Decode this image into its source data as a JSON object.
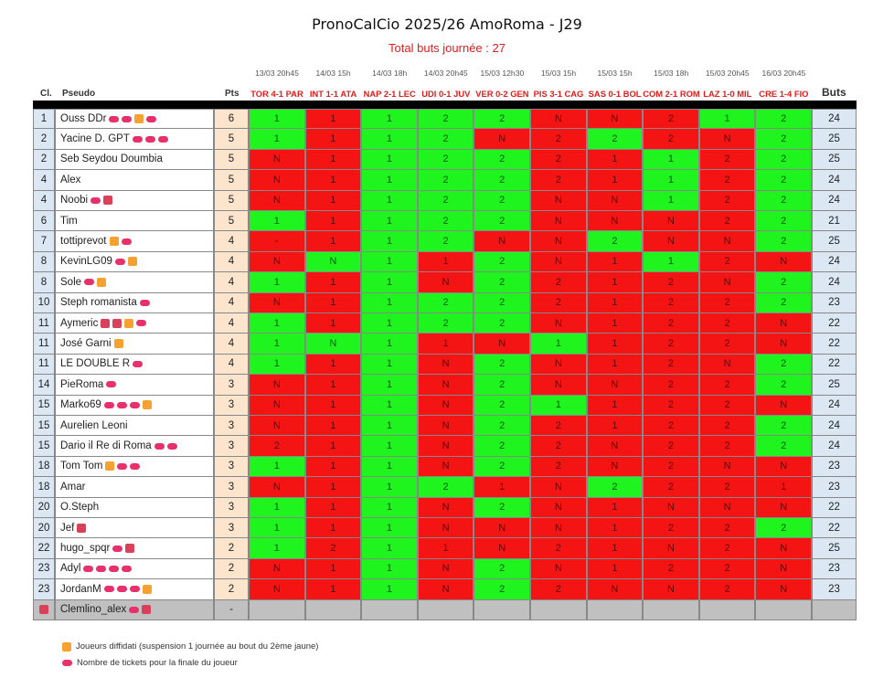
{
  "title": "PronoCalCio 2025/26 AmoRoma - J29",
  "subtitle": "Total buts journée : 27",
  "headers": {
    "rank": "Cl.",
    "name": "Pseudo",
    "pts": "Pts",
    "buts": "Buts"
  },
  "matches": [
    {
      "date": "13/03 20h45",
      "label": "TOR 4-1 PAR"
    },
    {
      "date": "14/03 15h",
      "label": "INT 1-1 ATA"
    },
    {
      "date": "14/03 18h",
      "label": "NAP 2-1 LEC"
    },
    {
      "date": "14/03 20h45",
      "label": "UDI 0-1 JUV"
    },
    {
      "date": "15/03 12h30",
      "label": "VER 0-2 GEN"
    },
    {
      "date": "15/03 15h",
      "label": "PIS 3-1 CAG"
    },
    {
      "date": "15/03 15h",
      "label": "SAS 0-1 BOL"
    },
    {
      "date": "15/03 18h",
      "label": "COM 2-1 ROM"
    },
    {
      "date": "15/03 20h45",
      "label": "LAZ 1-0 MIL"
    },
    {
      "date": "16/03 20h45",
      "label": "CRE 1-4 FIO"
    }
  ],
  "colors": {
    "correct": "#1ff41f",
    "wrong": "#f41414",
    "empty": "#c0c0c0",
    "rank_bg": "#dbe7f3",
    "pts_bg": "#fde4cc"
  },
  "players": [
    {
      "rank": "1",
      "name": "Ouss DDr",
      "badges": [
        "ticket",
        "ticket",
        "suspend",
        "ticket"
      ],
      "pts": "6",
      "picks": [
        "1",
        "1",
        "1",
        "2",
        "2",
        "N",
        "N",
        "2",
        "1",
        "2"
      ],
      "res": "GRGGGRRRGG",
      "buts": "24"
    },
    {
      "rank": "2",
      "name": "Yacine D. GPT",
      "badges": [
        "ticket",
        "ticket",
        "ticket"
      ],
      "pts": "5",
      "picks": [
        "1",
        "1",
        "1",
        "2",
        "N",
        "2",
        "2",
        "2",
        "N",
        "2"
      ],
      "res": "GRGGRRGRRG",
      "buts": "25"
    },
    {
      "rank": "2",
      "name": "Seb Seydou Doumbia",
      "badges": [],
      "pts": "5",
      "picks": [
        "N",
        "1",
        "1",
        "2",
        "2",
        "2",
        "1",
        "1",
        "2",
        "2"
      ],
      "res": "RRGGGRRGRG",
      "buts": "25"
    },
    {
      "rank": "4",
      "name": "Alex",
      "badges": [],
      "pts": "5",
      "picks": [
        "N",
        "1",
        "1",
        "2",
        "2",
        "2",
        "1",
        "1",
        "2",
        "2"
      ],
      "res": "RRGGGRRGRG",
      "buts": "24"
    },
    {
      "rank": "4",
      "name": "Noobi",
      "badges": [
        "ticket",
        "sq"
      ],
      "pts": "5",
      "picks": [
        "N",
        "1",
        "1",
        "2",
        "2",
        "N",
        "N",
        "1",
        "2",
        "2"
      ],
      "res": "RRGGGRRGRG",
      "buts": "24"
    },
    {
      "rank": "6",
      "name": "Tim",
      "badges": [],
      "pts": "5",
      "picks": [
        "1",
        "1",
        "1",
        "2",
        "2",
        "N",
        "N",
        "N",
        "2",
        "2"
      ],
      "res": "GRGGGRRRRG",
      "buts": "21"
    },
    {
      "rank": "7",
      "name": "tottiprevot",
      "badges": [
        "suspend",
        "ticket"
      ],
      "pts": "4",
      "picks": [
        "-",
        "1",
        "1",
        "2",
        "N",
        "N",
        "2",
        "N",
        "N",
        "2"
      ],
      "res": "DRGGRRGRRG",
      "buts": "25"
    },
    {
      "rank": "8",
      "name": "KevinLG09",
      "badges": [
        "ticket",
        "suspend"
      ],
      "pts": "4",
      "picks": [
        "N",
        "N",
        "1",
        "1",
        "2",
        "N",
        "1",
        "1",
        "2",
        "N"
      ],
      "res": "RGGRGRRGRR",
      "buts": "24"
    },
    {
      "rank": "8",
      "name": "Sole",
      "badges": [
        "ticket",
        "suspend"
      ],
      "pts": "4",
      "picks": [
        "1",
        "1",
        "1",
        "N",
        "2",
        "2",
        "1",
        "2",
        "N",
        "2"
      ],
      "res": "GRGRGRRRRG",
      "buts": "24"
    },
    {
      "rank": "10",
      "name": "Steph romanista",
      "badges": [
        "ticket"
      ],
      "pts": "4",
      "picks": [
        "N",
        "1",
        "1",
        "2",
        "2",
        "2",
        "1",
        "2",
        "2",
        "2"
      ],
      "res": "RRGGGRRRRG",
      "buts": "23"
    },
    {
      "rank": "11",
      "name": "Aymeric",
      "badges": [
        "sq",
        "sq",
        "suspend",
        "ticket"
      ],
      "pts": "4",
      "picks": [
        "1",
        "1",
        "1",
        "2",
        "2",
        "N",
        "1",
        "2",
        "2",
        "N"
      ],
      "res": "GRGGGRRRRR",
      "buts": "22"
    },
    {
      "rank": "11",
      "name": "José Garni",
      "badges": [
        "suspend"
      ],
      "pts": "4",
      "picks": [
        "1",
        "N",
        "1",
        "1",
        "N",
        "1",
        "1",
        "2",
        "2",
        "N"
      ],
      "res": "GGGRRGRRRR",
      "buts": "22"
    },
    {
      "rank": "11",
      "name": "LE DOUBLE R",
      "badges": [
        "ticket"
      ],
      "pts": "4",
      "picks": [
        "1",
        "1",
        "1",
        "N",
        "2",
        "N",
        "1",
        "2",
        "N",
        "2"
      ],
      "res": "GRGRGRRRRG",
      "buts": "22"
    },
    {
      "rank": "14",
      "name": "PieRoma",
      "badges": [
        "ticket"
      ],
      "pts": "3",
      "picks": [
        "N",
        "1",
        "1",
        "N",
        "2",
        "N",
        "N",
        "2",
        "2",
        "2"
      ],
      "res": "RRGRGRRRRG",
      "buts": "25"
    },
    {
      "rank": "15",
      "name": "Marko69",
      "badges": [
        "ticket",
        "ticket",
        "ticket",
        "suspend"
      ],
      "pts": "3",
      "picks": [
        "N",
        "1",
        "1",
        "N",
        "2",
        "1",
        "1",
        "2",
        "2",
        "N"
      ],
      "res": "RRGRGGRRRR",
      "buts": "24"
    },
    {
      "rank": "15",
      "name": "Aurelien Leoni",
      "badges": [],
      "pts": "3",
      "picks": [
        "N",
        "1",
        "1",
        "N",
        "2",
        "2",
        "1",
        "2",
        "2",
        "2"
      ],
      "res": "RRGRGRRRRG",
      "buts": "24"
    },
    {
      "rank": "15",
      "name": "Dario il Re di Roma",
      "badges": [
        "ticket",
        "ticket"
      ],
      "pts": "3",
      "picks": [
        "2",
        "1",
        "1",
        "N",
        "2",
        "2",
        "N",
        "2",
        "2",
        "2"
      ],
      "res": "RRGRGRRRRG",
      "buts": "24"
    },
    {
      "rank": "18",
      "name": "Tom Tom",
      "badges": [
        "suspend",
        "ticket",
        "ticket"
      ],
      "pts": "3",
      "picks": [
        "1",
        "1",
        "1",
        "N",
        "2",
        "2",
        "N",
        "2",
        "N",
        "N"
      ],
      "res": "GRGRGRRRRR",
      "buts": "23"
    },
    {
      "rank": "18",
      "name": "Amar",
      "badges": [],
      "pts": "3",
      "picks": [
        "N",
        "1",
        "1",
        "2",
        "1",
        "N",
        "2",
        "2",
        "2",
        "1"
      ],
      "res": "RRGGRRGRRR",
      "buts": "23"
    },
    {
      "rank": "20",
      "name": "O.Steph",
      "badges": [],
      "pts": "3",
      "picks": [
        "1",
        "1",
        "1",
        "N",
        "2",
        "N",
        "1",
        "N",
        "N",
        "N"
      ],
      "res": "GRGRGRRRRR",
      "buts": "22"
    },
    {
      "rank": "20",
      "name": "Jef",
      "badges": [
        "sq"
      ],
      "pts": "3",
      "picks": [
        "1",
        "1",
        "1",
        "N",
        "N",
        "N",
        "1",
        "2",
        "2",
        "2"
      ],
      "res": "GRGRRRRRRG",
      "buts": "22"
    },
    {
      "rank": "22",
      "name": "hugo_spqr",
      "badges": [
        "ticket",
        "sq"
      ],
      "pts": "2",
      "picks": [
        "1",
        "2",
        "1",
        "1",
        "N",
        "2",
        "1",
        "N",
        "2",
        "N"
      ],
      "res": "GRGRRRRRRR",
      "buts": "25"
    },
    {
      "rank": "23",
      "name": "Adyl",
      "badges": [
        "ticket",
        "ticket",
        "ticket",
        "ticket"
      ],
      "pts": "2",
      "picks": [
        "N",
        "1",
        "1",
        "N",
        "2",
        "N",
        "1",
        "2",
        "2",
        "N"
      ],
      "res": "RRGRGRRRRR",
      "buts": "23"
    },
    {
      "rank": "23",
      "name": "JordanM",
      "badges": [
        "ticket",
        "ticket",
        "ticket",
        "suspend"
      ],
      "pts": "2",
      "picks": [
        "N",
        "1",
        "1",
        "N",
        "2",
        "2",
        "N",
        "N",
        "2",
        "N"
      ],
      "res": "RRGRGRRRRR",
      "buts": "23"
    },
    {
      "rank": "",
      "name": "Clemlino_alex",
      "badges": [
        "ticket",
        "sq"
      ],
      "pts": "-",
      "picks": [
        "",
        "",
        "",
        "",
        "",
        "",
        "",
        "",
        "",
        ""
      ],
      "res": "XXXXXXXXXX",
      "buts": "",
      "excluded": true
    }
  ],
  "legend": [
    {
      "icon": "suspend",
      "text": "Joueurs diffidati (suspension 1 journée au bout du 2ème jaune)"
    },
    {
      "icon": "ticket",
      "text": "Nombre de tickets pour la finale du joueur"
    }
  ]
}
